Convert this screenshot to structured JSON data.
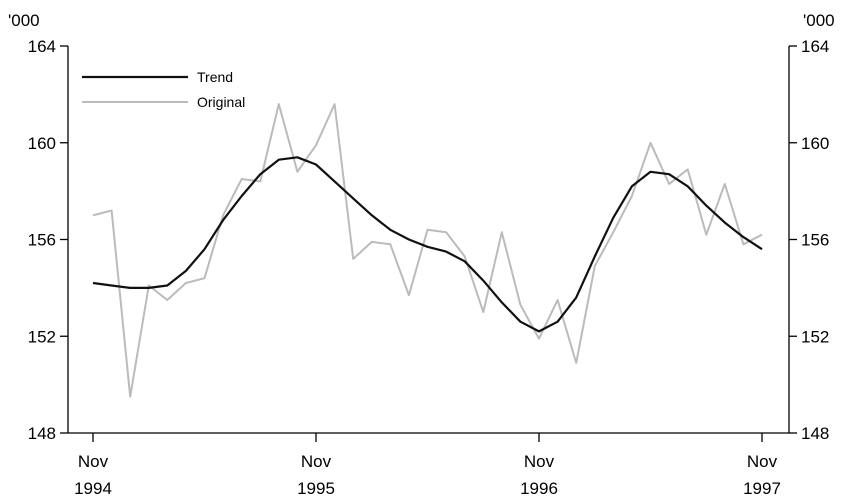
{
  "chart_data": {
    "type": "line",
    "title": "",
    "y_unit_left": "'000",
    "y_unit_right": "'000",
    "ylim": [
      148,
      164
    ],
    "y_ticks": [
      148,
      152,
      156,
      160,
      164
    ],
    "x_tick_labels": [
      {
        "month": "Nov",
        "year": "1994"
      },
      {
        "month": "Nov",
        "year": "1995"
      },
      {
        "month": "Nov",
        "year": "1996"
      },
      {
        "month": "Nov",
        "year": "1997"
      }
    ],
    "x_start": "Nov 1994",
    "x_end": "Nov 1997",
    "legend_position": "top-left",
    "series": [
      {
        "name": "Trend",
        "color": "#111111",
        "values": [
          154.2,
          154.1,
          154.0,
          154.0,
          154.1,
          154.7,
          155.6,
          156.8,
          157.8,
          158.7,
          159.3,
          159.4,
          159.1,
          158.4,
          157.7,
          157.0,
          156.4,
          156.0,
          155.7,
          155.5,
          155.1,
          154.3,
          153.4,
          152.6,
          152.2,
          152.6,
          153.6,
          155.3,
          156.9,
          158.2,
          158.8,
          158.7,
          158.2,
          157.4,
          156.7,
          156.1,
          155.6
        ]
      },
      {
        "name": "Original",
        "color": "#bbbbbb",
        "values": [
          157.0,
          157.2,
          149.5,
          154.1,
          153.5,
          154.2,
          154.4,
          157.0,
          158.5,
          158.4,
          161.6,
          158.8,
          159.9,
          161.6,
          155.2,
          155.9,
          155.8,
          153.7,
          156.4,
          156.3,
          155.3,
          153.0,
          156.3,
          153.3,
          151.9,
          153.5,
          150.9,
          154.9,
          156.3,
          157.8,
          160.0,
          158.3,
          158.9,
          156.2,
          158.3,
          155.8,
          156.2
        ]
      }
    ]
  }
}
